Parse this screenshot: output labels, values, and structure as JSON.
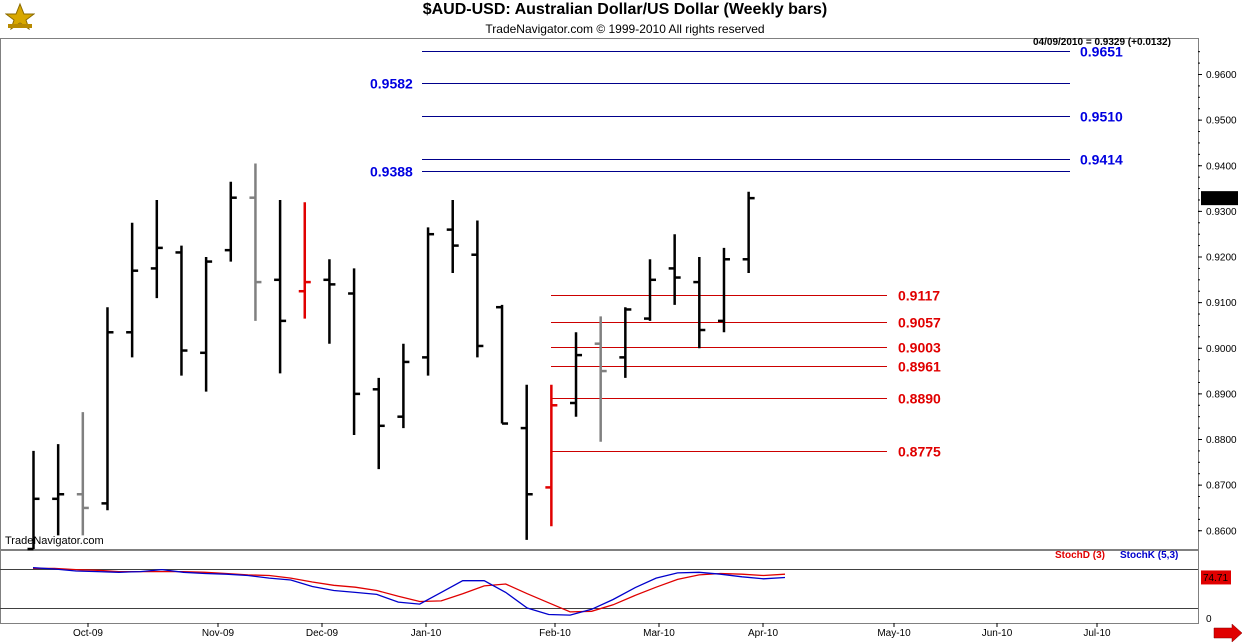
{
  "header": {
    "title": "$AUD-USD:  Australian Dollar/US Dollar  (Weekly bars)",
    "subtitle": "TradeNavigator.com © 1999-2010 All rights reserved",
    "quote": "04/09/2010 = 0.9329 (+0.0132)",
    "brand": "TradeNavigator.com"
  },
  "chart_data": {
    "type": "ohlc",
    "ylim": [
      0.856,
      0.968
    ],
    "y_ticks": [
      "0.8600",
      "0.8700",
      "0.8800",
      "0.8900",
      "0.9000",
      "0.9100",
      "0.9200",
      "0.9300",
      "0.9400",
      "0.9500",
      "0.9600"
    ],
    "x_ticks": [
      "Oct-09",
      "Nov-09",
      "Dec-09",
      "Jan-10",
      "Feb-10",
      "Mar-10",
      "Apr-10",
      "May-10",
      "Jun-10",
      "Jul-10"
    ],
    "last_price_label": "0.9329",
    "bars": [
      {
        "o": 0.856,
        "h": 0.8775,
        "l": 0.856,
        "c": 0.867,
        "color": "#000000"
      },
      {
        "o": 0.867,
        "h": 0.879,
        "l": 0.859,
        "c": 0.868,
        "color": "#000000"
      },
      {
        "o": 0.868,
        "h": 0.886,
        "l": 0.859,
        "c": 0.865,
        "color": "#808080"
      },
      {
        "o": 0.866,
        "h": 0.909,
        "l": 0.8645,
        "c": 0.9035,
        "color": "#000000"
      },
      {
        "o": 0.9035,
        "h": 0.9275,
        "l": 0.898,
        "c": 0.917,
        "color": "#000000"
      },
      {
        "o": 0.9175,
        "h": 0.9325,
        "l": 0.911,
        "c": 0.922,
        "color": "#000000"
      },
      {
        "o": 0.921,
        "h": 0.9225,
        "l": 0.894,
        "c": 0.8995,
        "color": "#000000"
      },
      {
        "o": 0.899,
        "h": 0.92,
        "l": 0.8905,
        "c": 0.919,
        "color": "#000000"
      },
      {
        "o": 0.9215,
        "h": 0.9365,
        "l": 0.919,
        "c": 0.933,
        "color": "#000000"
      },
      {
        "o": 0.933,
        "h": 0.9405,
        "l": 0.906,
        "c": 0.9145,
        "color": "#808080"
      },
      {
        "o": 0.915,
        "h": 0.9325,
        "l": 0.8945,
        "c": 0.906,
        "color": "#000000"
      },
      {
        "o": 0.9125,
        "h": 0.932,
        "l": 0.9065,
        "c": 0.9145,
        "color": "#e00000"
      },
      {
        "o": 0.915,
        "h": 0.9195,
        "l": 0.901,
        "c": 0.914,
        "color": "#000000"
      },
      {
        "o": 0.912,
        "h": 0.9175,
        "l": 0.881,
        "c": 0.89,
        "color": "#000000"
      },
      {
        "o": 0.891,
        "h": 0.8935,
        "l": 0.8735,
        "c": 0.883,
        "color": "#000000"
      },
      {
        "o": 0.885,
        "h": 0.901,
        "l": 0.8825,
        "c": 0.897,
        "color": "#000000"
      },
      {
        "o": 0.898,
        "h": 0.9265,
        "l": 0.894,
        "c": 0.925,
        "color": "#000000"
      },
      {
        "o": 0.926,
        "h": 0.9325,
        "l": 0.9165,
        "c": 0.9225,
        "color": "#000000"
      },
      {
        "o": 0.9205,
        "h": 0.928,
        "l": 0.898,
        "c": 0.9005,
        "color": "#000000"
      },
      {
        "o": 0.909,
        "h": 0.9095,
        "l": 0.8835,
        "c": 0.8835,
        "color": "#000000"
      },
      {
        "o": 0.8825,
        "h": 0.892,
        "l": 0.858,
        "c": 0.868,
        "color": "#000000"
      },
      {
        "o": 0.8695,
        "h": 0.892,
        "l": 0.861,
        "c": 0.8875,
        "color": "#e00000"
      },
      {
        "o": 0.888,
        "h": 0.9035,
        "l": 0.885,
        "c": 0.8985,
        "color": "#000000"
      },
      {
        "o": 0.901,
        "h": 0.907,
        "l": 0.8795,
        "c": 0.895,
        "color": "#808080"
      },
      {
        "o": 0.898,
        "h": 0.909,
        "l": 0.8935,
        "c": 0.9085,
        "color": "#000000"
      },
      {
        "o": 0.9065,
        "h": 0.9195,
        "l": 0.906,
        "c": 0.915,
        "color": "#000000"
      },
      {
        "o": 0.9175,
        "h": 0.925,
        "l": 0.9095,
        "c": 0.9155,
        "color": "#000000"
      },
      {
        "o": 0.9145,
        "h": 0.92,
        "l": 0.9,
        "c": 0.904,
        "color": "#000000"
      },
      {
        "o": 0.906,
        "h": 0.922,
        "l": 0.9035,
        "c": 0.9195,
        "color": "#000000"
      },
      {
        "o": 0.9195,
        "h": 0.9343,
        "l": 0.9165,
        "c": 0.9329,
        "color": "#000000"
      }
    ],
    "blue_levels": [
      {
        "value": 0.9651,
        "label": "0.9651",
        "side": "right"
      },
      {
        "value": 0.9582,
        "label": "0.9582",
        "side": "left"
      },
      {
        "value": 0.951,
        "label": "0.9510",
        "side": "right"
      },
      {
        "value": 0.9414,
        "label": "0.9414",
        "side": "right"
      },
      {
        "value": 0.9388,
        "label": "0.9388",
        "side": "left"
      }
    ],
    "red_levels": [
      {
        "value": 0.9117,
        "label": "0.9117"
      },
      {
        "value": 0.9057,
        "label": "0.9057"
      },
      {
        "value": 0.9003,
        "label": "0.9003"
      },
      {
        "value": 0.8961,
        "label": "0.8961"
      },
      {
        "value": 0.889,
        "label": "0.8890"
      },
      {
        "value": 0.8775,
        "label": "0.8775"
      }
    ],
    "stochastic": {
      "label_d": "StochD (3)",
      "label_k": "StochK (5,3)",
      "ylim": [
        0,
        100
      ],
      "ref_high": 80,
      "ref_low": 20,
      "y_tick_zero": "0",
      "last_value_label": "74.71",
      "k_values": [
        82,
        80,
        77,
        76,
        75,
        76,
        79,
        75,
        73,
        72,
        70,
        66,
        63,
        53,
        47,
        44,
        41,
        29,
        26,
        44,
        62,
        62,
        44,
        20,
        10,
        9,
        18,
        33,
        51,
        66,
        74,
        75,
        72,
        68,
        65,
        67
      ],
      "d_values": [
        81,
        81,
        79,
        78,
        76,
        76,
        76,
        76,
        75,
        73,
        71,
        70,
        66,
        60,
        55,
        52,
        47,
        38,
        30,
        31,
        42,
        54,
        57,
        42,
        28,
        14,
        15,
        25,
        39,
        52,
        64,
        71,
        73,
        72,
        70,
        72
      ]
    }
  }
}
